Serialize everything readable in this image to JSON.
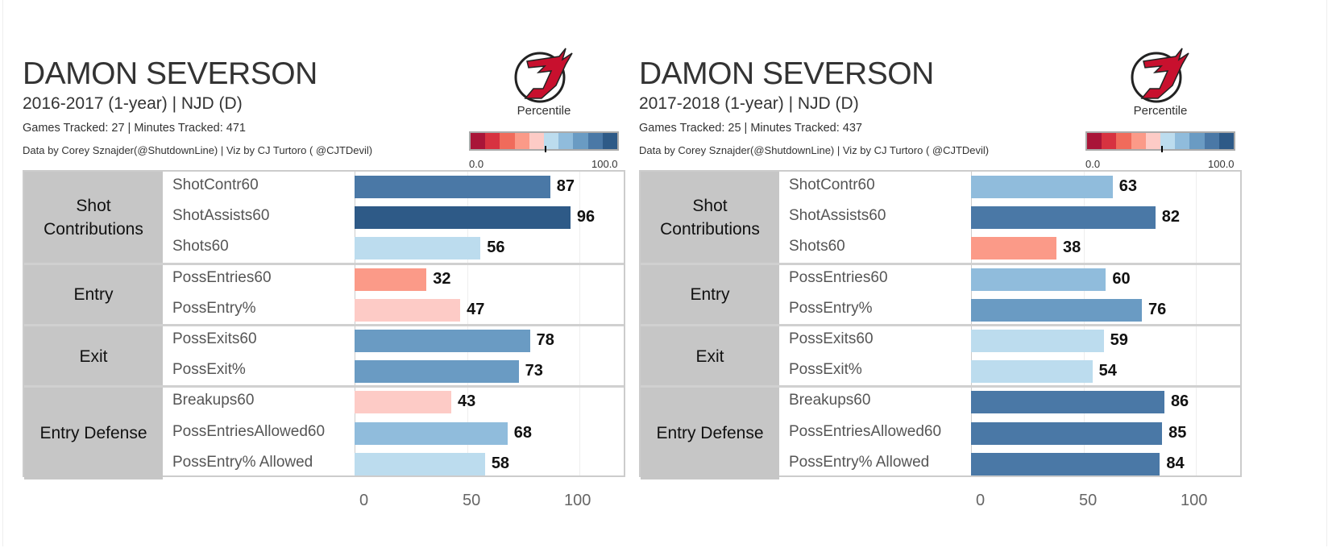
{
  "legend": {
    "title": "Percentile",
    "min_label": "0.0",
    "max_label": "100.0",
    "colors": [
      "#a91538",
      "#d73240",
      "#f06b5b",
      "#fb9a88",
      "#fdcbc6",
      "#bcdcee",
      "#90bcdc",
      "#6a9bc3",
      "#4a78a6",
      "#2e5a87"
    ]
  },
  "panels": [
    {
      "player": "DAMON SEVERSON",
      "season": "2016-2017 (1-year) | NJD (D)",
      "games": "Games Tracked: 27  | Minutes Tracked: 471",
      "credit": "Data by Corey Sznajder(@ShutdownLine) | Viz by CJ Turtoro ( @CJTDevil)"
    },
    {
      "player": "DAMON SEVERSON",
      "season": "2017-2018 (1-year) | NJD (D)",
      "games": "Games Tracked: 25  | Minutes Tracked: 437",
      "credit": "Data by Corey Sznajder(@ShutdownLine) | Viz by CJ Turtoro ( @CJTDevil)"
    }
  ],
  "chart_data": [
    {
      "type": "bar",
      "orientation": "horizontal",
      "xlim": [
        0,
        120
      ],
      "xticks": [
        "0",
        "50",
        "100"
      ],
      "grid": true,
      "groups": [
        {
          "name": "Shot Contributions",
          "metrics": [
            "ShotContr60",
            "ShotAssists60",
            "Shots60"
          ],
          "values": [
            87,
            96,
            56
          ]
        },
        {
          "name": "Entry",
          "metrics": [
            "PossEntries60",
            "PossEntry%"
          ],
          "values": [
            32,
            47
          ]
        },
        {
          "name": "Exit",
          "metrics": [
            "PossExits60",
            "PossExit%"
          ],
          "values": [
            78,
            73
          ]
        },
        {
          "name": "Entry Defense",
          "metrics": [
            "Breakups60",
            "PossEntriesAllowed60",
            "PossEntry% Allowed"
          ],
          "values": [
            43,
            68,
            58
          ]
        }
      ]
    },
    {
      "type": "bar",
      "orientation": "horizontal",
      "xlim": [
        0,
        120
      ],
      "xticks": [
        "0",
        "50",
        "100"
      ],
      "grid": true,
      "groups": [
        {
          "name": "Shot Contributions",
          "metrics": [
            "ShotContr60",
            "ShotAssists60",
            "Shots60"
          ],
          "values": [
            63,
            82,
            38
          ]
        },
        {
          "name": "Entry",
          "metrics": [
            "PossEntries60",
            "PossEntry%"
          ],
          "values": [
            60,
            76
          ]
        },
        {
          "name": "Exit",
          "metrics": [
            "PossExits60",
            "PossExit%"
          ],
          "values": [
            59,
            54
          ]
        },
        {
          "name": "Entry Defense",
          "metrics": [
            "Breakups60",
            "PossEntriesAllowed60",
            "PossEntry% Allowed"
          ],
          "values": [
            86,
            85,
            84
          ]
        }
      ]
    }
  ]
}
